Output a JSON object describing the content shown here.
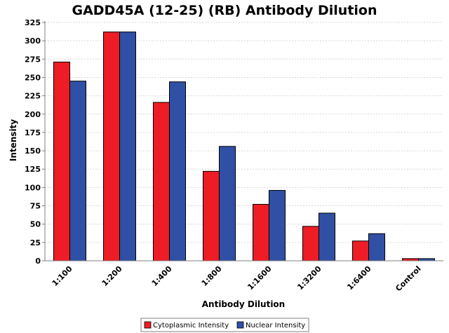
{
  "chart_data": {
    "type": "bar",
    "title": "GADD45A (12-25) (RB) Antibody Dilution",
    "xlabel": "Antibody Dilution",
    "ylabel": "Intensity",
    "categories": [
      "1:100",
      "1:200",
      "1:400",
      "1:800",
      "1:1600",
      "1:3200",
      "1:6400",
      "Control"
    ],
    "series": [
      {
        "name": "Cytoplasmic Intensity",
        "color": "#ee1c24",
        "values": [
          271,
          312,
          216,
          122,
          77,
          47,
          27,
          3
        ]
      },
      {
        "name": "Nuclear Intensity",
        "color": "#3050a5",
        "values": [
          245,
          312,
          244,
          156,
          96,
          65,
          37,
          3
        ]
      }
    ],
    "ylim": [
      0,
      325
    ],
    "yticks": [
      0,
      25,
      50,
      75,
      100,
      125,
      150,
      175,
      200,
      225,
      250,
      275,
      300,
      325
    ],
    "grid": true,
    "legend_position": "bottom"
  }
}
